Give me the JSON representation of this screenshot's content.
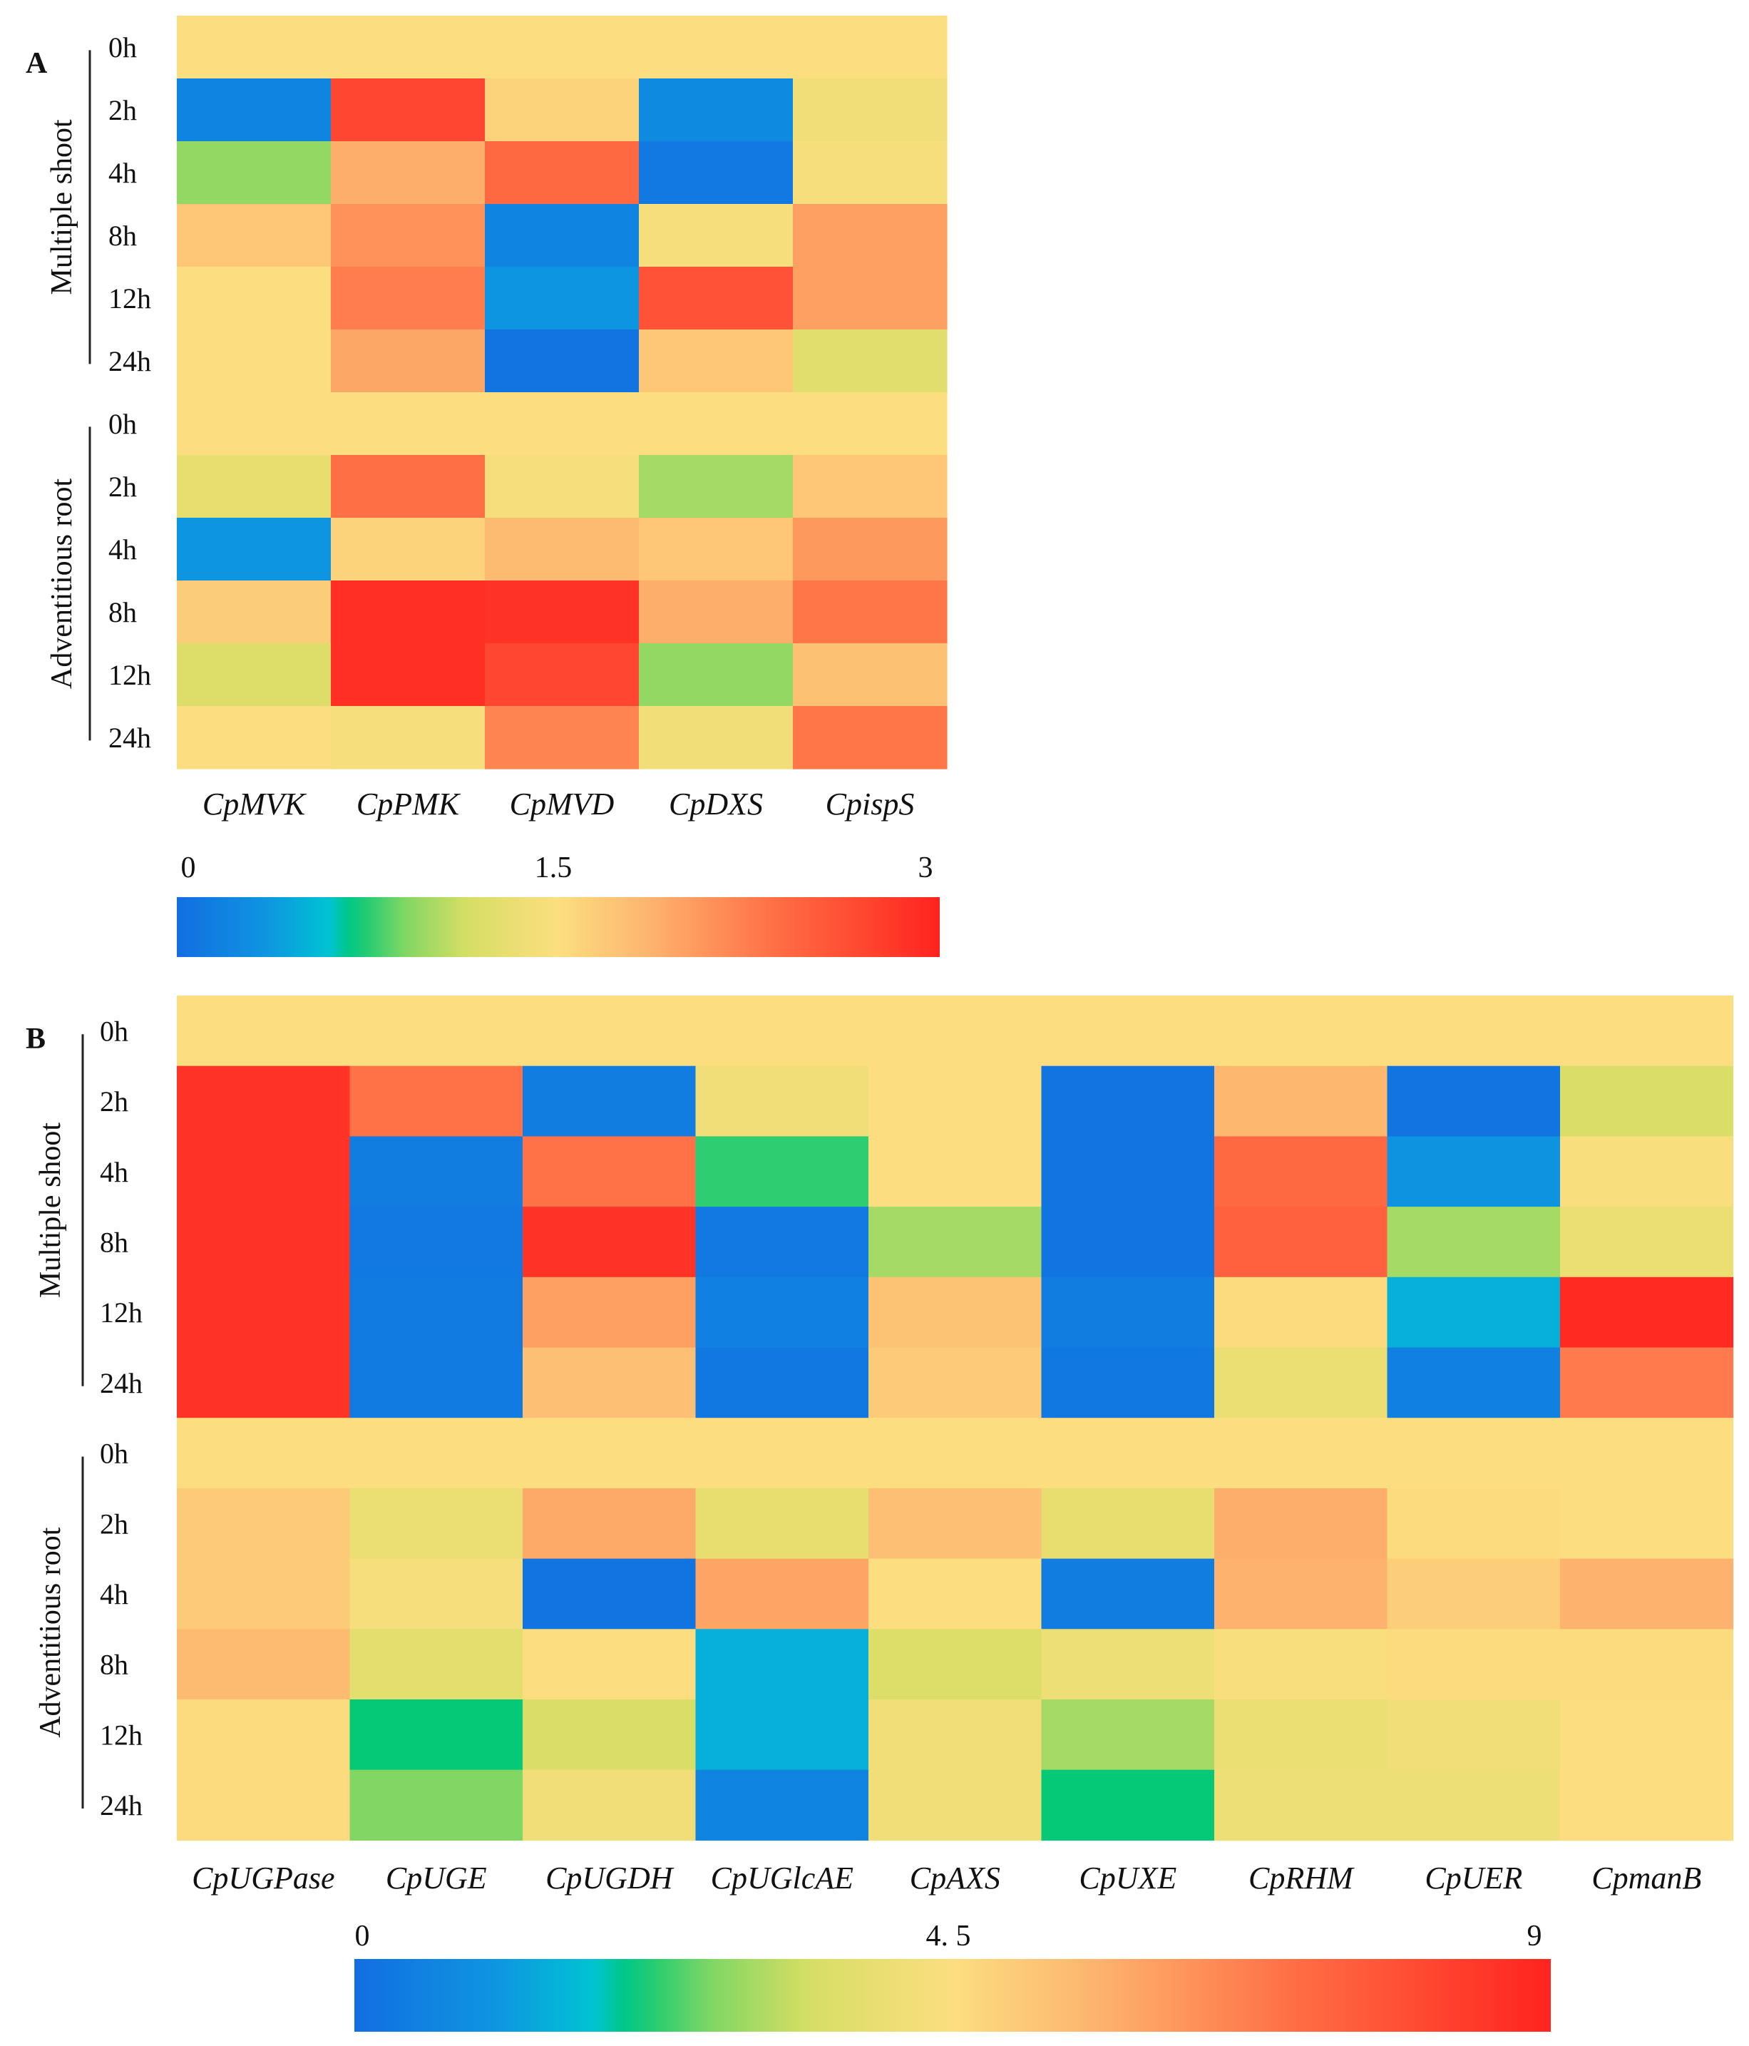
{
  "chart_data": [
    {
      "type": "heatmap",
      "panel_label": "A",
      "columns": [
        "CpMVK",
        "CpPMK",
        "CpMVD",
        "CpDXS",
        "CpispS"
      ],
      "groups": [
        {
          "name": "Multiple shoot",
          "rows": [
            "0h",
            "2h",
            "4h",
            "8h",
            "12h",
            "24h"
          ],
          "values": [
            [
              1.5,
              1.5,
              1.5,
              1.5,
              1.5
            ],
            [
              0.2,
              2.7,
              1.6,
              0.25,
              1.4
            ],
            [
              0.95,
              1.9,
              2.4,
              0.1,
              1.45
            ],
            [
              1.7,
              2.1,
              0.2,
              1.45,
              2.0
            ],
            [
              1.5,
              2.25,
              0.35,
              2.6,
              2.0
            ],
            [
              1.5,
              1.95,
              0.05,
              1.7,
              1.25
            ]
          ]
        },
        {
          "name": "Adventitious root",
          "rows": [
            "0h",
            "2h",
            "4h",
            "8h",
            "12h",
            "24h"
          ],
          "values": [
            [
              1.5,
              1.5,
              1.5,
              1.5,
              1.5
            ],
            [
              1.3,
              2.35,
              1.45,
              1.0,
              1.7
            ],
            [
              0.35,
              1.6,
              1.8,
              1.7,
              2.05
            ],
            [
              1.65,
              2.9,
              2.85,
              1.9,
              2.3
            ],
            [
              1.2,
              2.9,
              2.7,
              0.95,
              1.75
            ],
            [
              1.5,
              1.45,
              2.2,
              1.4,
              2.3
            ]
          ]
        }
      ],
      "colorbar": {
        "min": 0,
        "mid": 1.5,
        "max": 3,
        "tick_labels": [
          "0",
          "1.5",
          "3"
        ]
      }
    },
    {
      "type": "heatmap",
      "panel_label": "B",
      "columns": [
        "CpUGPase",
        "CpUGE",
        "CpUGDH",
        "CpUGlcAE",
        "CpAXS",
        "CpUXE",
        "CpRHM",
        "CpUER",
        "CpmanB"
      ],
      "groups": [
        {
          "name": "Multiple shoot",
          "rows": [
            "0h",
            "2h",
            "4h",
            "8h",
            "12h",
            "24h"
          ],
          "values": [
            [
              4.5,
              4.5,
              4.5,
              4.5,
              4.5,
              4.5,
              4.5,
              4.5,
              4.5
            ],
            [
              8.6,
              7.0,
              0.4,
              4.2,
              4.5,
              0.2,
              5.5,
              0.2,
              3.5
            ],
            [
              8.6,
              0.4,
              7.0,
              2.3,
              4.5,
              0.2,
              7.2,
              1.0,
              4.4
            ],
            [
              8.6,
              0.3,
              8.6,
              0.3,
              3.0,
              0.2,
              7.4,
              3.0,
              4.0
            ],
            [
              8.6,
              0.35,
              6.0,
              0.5,
              5.2,
              0.4,
              4.6,
              1.5,
              8.8
            ],
            [
              8.6,
              0.35,
              5.3,
              0.25,
              5.0,
              0.25,
              4.0,
              0.5,
              6.8
            ]
          ]
        },
        {
          "name": "Adventitious root",
          "rows": [
            "0h",
            "2h",
            "4h",
            "8h",
            "12h",
            "24h"
          ],
          "values": [
            [
              4.5,
              4.5,
              4.5,
              4.5,
              4.5,
              4.5,
              4.5,
              4.5,
              4.5
            ],
            [
              5.0,
              4.0,
              5.8,
              3.9,
              5.3,
              3.9,
              5.7,
              4.6,
              4.5
            ],
            [
              5.0,
              4.3,
              0.2,
              5.9,
              4.5,
              0.4,
              5.6,
              4.9,
              5.6
            ],
            [
              5.4,
              3.8,
              4.5,
              1.5,
              3.6,
              4.1,
              4.4,
              4.6,
              4.6
            ],
            [
              4.6,
              2.1,
              3.5,
              1.5,
              4.2,
              3.0,
              4.0,
              4.2,
              4.5
            ],
            [
              4.6,
              2.7,
              4.2,
              0.6,
              4.2,
              2.1,
              4.1,
              4.1,
              4.5
            ]
          ]
        }
      ],
      "colorbar": {
        "min": 0,
        "mid": 4.5,
        "max": 9,
        "tick_labels": [
          "0",
          "4. 5",
          "9"
        ]
      }
    }
  ]
}
